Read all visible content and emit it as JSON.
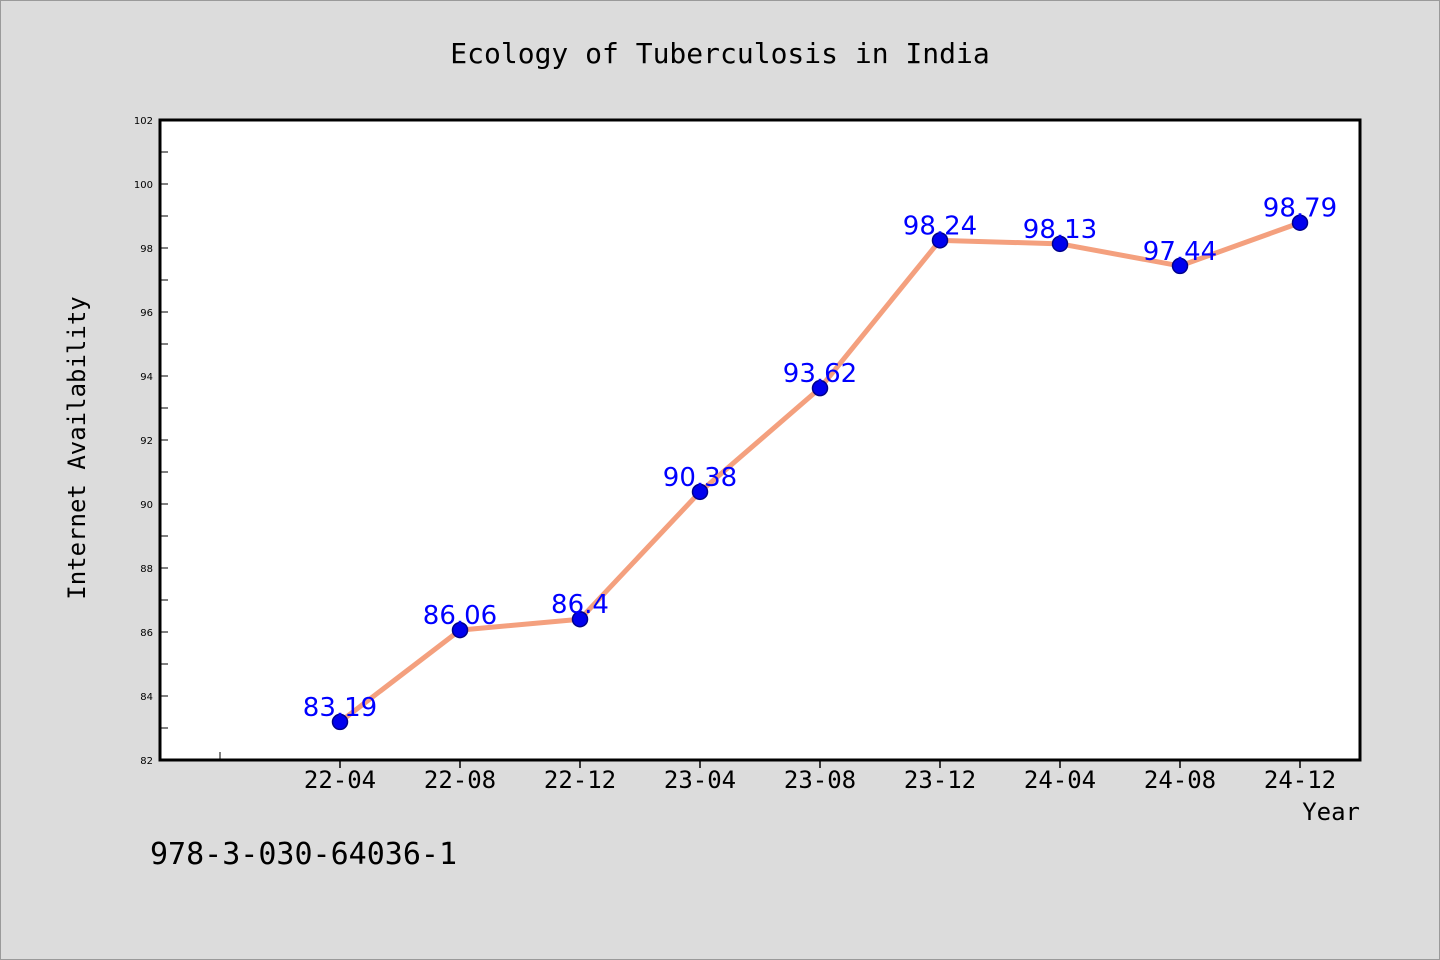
{
  "chart_data": {
    "type": "line",
    "title": "Ecology of Tuberculosis in India",
    "xlabel": "Year",
    "ylabel": "Internet Availability",
    "categories": [
      "22-04",
      "22-08",
      "22-12",
      "23-04",
      "23-08",
      "23-12",
      "24-04",
      "24-08",
      "24-12"
    ],
    "values": [
      83.19,
      86.06,
      86.4,
      90.38,
      93.62,
      98.24,
      98.13,
      97.44,
      98.79
    ],
    "data_labels": [
      "83.19",
      "86.06",
      "86.4",
      "90.38",
      "93.62",
      "98.24",
      "98.13",
      "97.44",
      "98.79"
    ],
    "ylim": [
      82,
      102
    ],
    "yticks": [
      82,
      84,
      86,
      88,
      90,
      92,
      94,
      96,
      98,
      100,
      102
    ],
    "grid": false,
    "colors": {
      "line": "#f4a07e",
      "marker": "#0000ee",
      "marker_edge": "#00008b",
      "data_label": "#0000ff",
      "background": "#dcdcdc",
      "plot_area": "#ffffff"
    }
  },
  "footer_text": "978-3-030-64036-1"
}
